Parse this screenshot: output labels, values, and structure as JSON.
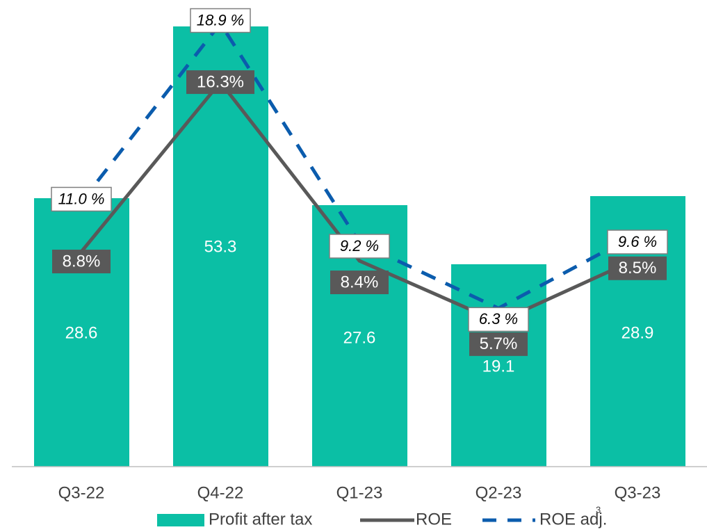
{
  "chart_data": {
    "type": "bar",
    "categories": [
      "Q3-22",
      "Q4-22",
      "Q1-23",
      "Q2-23",
      "Q3-23"
    ],
    "ylim": [
      -10,
      57
    ],
    "y2lim": [
      -0.7,
      19.9
    ],
    "series": [
      {
        "name": "Profit after tax",
        "type": "bar",
        "color": "#0bbfa5",
        "values": [
          28.6,
          53.3,
          27.6,
          19.1,
          28.9
        ]
      },
      {
        "name": "ROE",
        "type": "line",
        "axis": "y2",
        "color": "#595959",
        "values": [
          8.8,
          16.3,
          8.4,
          5.7,
          8.5
        ],
        "value_labels": [
          "8.8%",
          "16.3%",
          "8.4%",
          "5.7%",
          "8.5%"
        ]
      },
      {
        "name": "ROE adj.",
        "type": "line",
        "axis": "y2",
        "dashed": true,
        "color": "#0b5cad",
        "values": [
          11.0,
          18.9,
          9.2,
          6.3,
          9.6
        ],
        "value_labels": [
          "11.0 %",
          "18.9 %",
          "9.2 %",
          "6.3 %",
          "9.6 %"
        ],
        "footnote": "3"
      }
    ]
  }
}
